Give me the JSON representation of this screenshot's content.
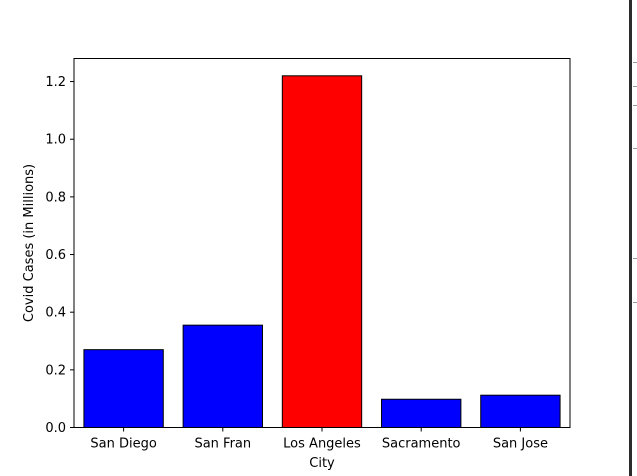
{
  "chart_data": {
    "type": "bar",
    "categories": [
      "San Diego",
      "San Fran",
      "Los Angeles",
      "Sacramento",
      "San Jose"
    ],
    "values": [
      0.27,
      0.355,
      1.22,
      0.098,
      0.112
    ],
    "colors": [
      "#0000ff",
      "#0000ff",
      "#ff0000",
      "#0000ff",
      "#0000ff"
    ],
    "edge_color": "#000000",
    "xlabel": "City",
    "ylabel": "Covid Cases (in Millions)",
    "ylim": [
      0,
      1.28
    ],
    "yticks": [
      0.0,
      0.2,
      0.4,
      0.6,
      0.8,
      1.0,
      1.2
    ],
    "ytick_labels": [
      "0.0",
      "0.2",
      "0.4",
      "0.6",
      "0.8",
      "1.0",
      "1.2"
    ],
    "grid": false
  }
}
